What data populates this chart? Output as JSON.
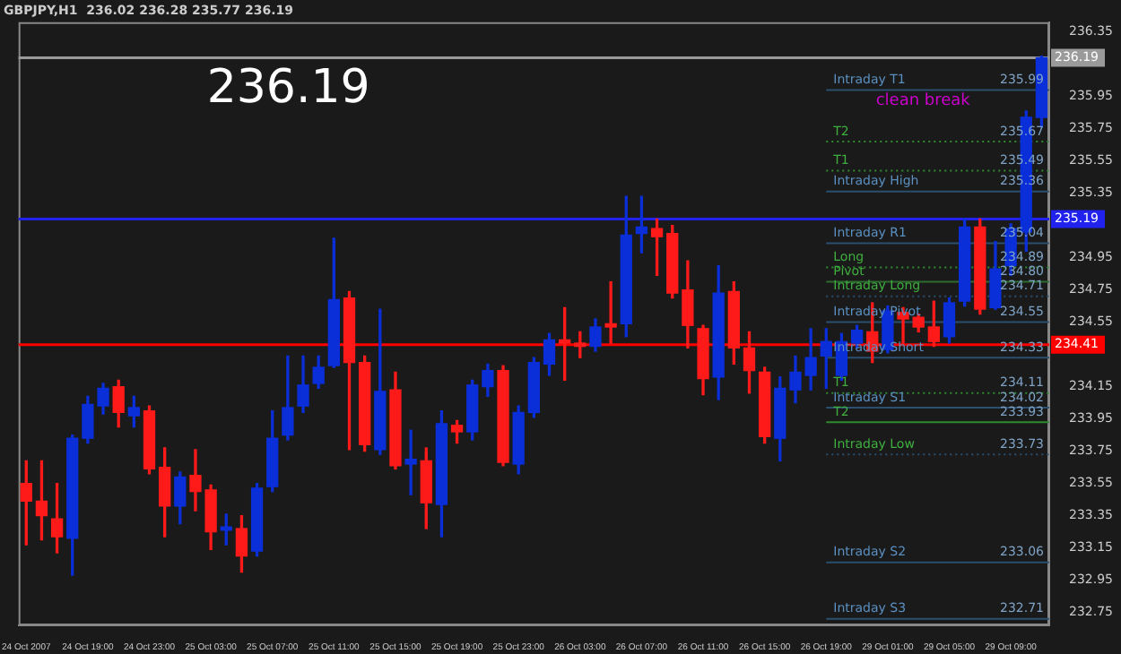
{
  "chart_data": {
    "type": "candlestick",
    "title": "GBPJPY,H1  236.02 236.28 235.77 236.19",
    "annotations": [
      "236.19",
      "clean break",
      {
        "text": "236.19",
        "y": 236.19
      },
      {
        "text": "235.19",
        "y": 235.19
      },
      {
        "text": "234.41",
        "y": 234.41
      },
      {
        "text": "235.99",
        "y": 235.99
      },
      {
        "text": "235.67",
        "y": 235.67
      },
      {
        "text": "235.49",
        "y": 235.49
      },
      {
        "text": "235.36",
        "y": 235.36
      },
      {
        "text": "235.04",
        "y": 235.04
      },
      {
        "text": "234.89",
        "y": 234.89
      },
      {
        "text": "234.80",
        "y": 234.8
      },
      {
        "text": "234.71",
        "y": 234.71
      },
      {
        "text": "234.55",
        "y": 234.55
      },
      {
        "text": "234.33",
        "y": 234.33
      },
      {
        "text": "234.11",
        "y": 234.11
      },
      {
        "text": "234.02",
        "y": 234.02
      },
      {
        "text": "233.93",
        "y": 233.93
      },
      {
        "text": "233.73",
        "y": 233.73
      },
      {
        "text": "233.06",
        "y": 233.06
      },
      {
        "text": "232.71",
        "y": 232.71
      }
    ],
    "categories": [
      "24 Oct 2007",
      null,
      null,
      null,
      "24 Oct 19:00",
      null,
      null,
      null,
      "24 Oct 23:00",
      null,
      null,
      null,
      "25 Oct 03:00",
      null,
      null,
      null,
      "25 Oct 07:00",
      null,
      null,
      null,
      "25 Oct 11:00",
      null,
      null,
      null,
      "25 Oct 15:00",
      null,
      null,
      null,
      "25 Oct 19:00",
      null,
      null,
      null,
      "25 Oct 23:00",
      null,
      null,
      null,
      "26 Oct 03:00",
      null,
      null,
      null,
      "26 Oct 07:00",
      null,
      null,
      null,
      "26 Oct 11:00",
      null,
      null,
      null,
      "26 Oct 15:00",
      null,
      null,
      null,
      "26 Oct 19:00",
      null,
      null,
      null,
      "29 Oct 01:00",
      null,
      null,
      null,
      "29 Oct 05:00",
      null,
      null,
      null,
      "29 Oct 09:00",
      null,
      null
    ],
    "ohlc": [
      [
        233.55,
        233.69,
        233.17,
        233.44
      ],
      [
        233.44,
        233.69,
        233.2,
        233.35
      ],
      [
        233.33,
        233.55,
        233.12,
        233.22
      ],
      [
        233.21,
        233.85,
        232.98,
        233.83
      ],
      [
        233.83,
        234.09,
        233.8,
        234.04
      ],
      [
        234.03,
        234.17,
        233.98,
        234.14
      ],
      [
        234.15,
        234.19,
        233.9,
        233.99
      ],
      [
        233.97,
        234.09,
        233.9,
        234.02
      ],
      [
        234.0,
        234.03,
        233.61,
        233.64
      ],
      [
        233.65,
        233.77,
        233.22,
        233.41
      ],
      [
        233.41,
        233.62,
        233.3,
        233.59
      ],
      [
        233.6,
        233.76,
        233.38,
        233.5
      ],
      [
        233.51,
        233.54,
        233.14,
        233.25
      ],
      [
        233.26,
        233.36,
        233.17,
        233.28
      ],
      [
        233.27,
        233.35,
        233.0,
        233.1
      ],
      [
        233.13,
        233.55,
        233.1,
        233.52
      ],
      [
        233.53,
        234.0,
        233.5,
        233.83
      ],
      [
        233.85,
        234.34,
        233.82,
        234.02
      ],
      [
        234.03,
        234.34,
        233.99,
        234.16
      ],
      [
        234.17,
        234.34,
        234.14,
        234.27
      ],
      [
        234.28,
        235.07,
        234.27,
        234.69
      ],
      [
        234.7,
        234.74,
        233.76,
        234.3
      ],
      [
        234.3,
        234.34,
        233.75,
        233.79
      ],
      [
        233.76,
        234.63,
        233.73,
        234.12
      ],
      [
        234.13,
        234.24,
        233.64,
        233.66
      ],
      [
        233.67,
        233.88,
        233.48,
        233.7
      ],
      [
        233.69,
        233.77,
        233.27,
        233.43
      ],
      [
        233.42,
        234.0,
        233.22,
        233.92
      ],
      [
        233.91,
        233.94,
        233.8,
        233.87
      ],
      [
        233.87,
        234.19,
        233.82,
        234.16
      ],
      [
        234.15,
        234.29,
        234.09,
        234.25
      ],
      [
        234.25,
        234.28,
        233.66,
        233.68
      ],
      [
        233.67,
        234.03,
        233.61,
        233.99
      ],
      [
        233.99,
        234.33,
        233.96,
        234.3
      ],
      [
        234.29,
        234.48,
        234.22,
        234.44
      ],
      [
        234.44,
        234.64,
        234.19,
        234.42
      ],
      [
        234.42,
        234.49,
        234.33,
        234.4
      ],
      [
        234.4,
        234.57,
        234.37,
        234.52
      ],
      [
        234.54,
        234.8,
        234.42,
        234.52
      ],
      [
        234.54,
        235.33,
        234.46,
        235.09
      ],
      [
        235.1,
        235.33,
        234.98,
        235.14
      ],
      [
        235.13,
        235.19,
        234.84,
        235.08
      ],
      [
        235.1,
        235.15,
        234.7,
        234.73
      ],
      [
        234.75,
        234.93,
        234.39,
        234.53
      ],
      [
        234.51,
        234.53,
        234.1,
        234.2
      ],
      [
        234.21,
        234.9,
        234.07,
        234.73
      ],
      [
        234.74,
        234.8,
        234.29,
        234.39
      ],
      [
        234.39,
        234.49,
        234.11,
        234.25
      ],
      [
        234.24,
        234.27,
        233.8,
        233.84
      ],
      [
        233.83,
        234.21,
        233.69,
        234.14
      ],
      [
        234.13,
        234.34,
        234.05,
        234.24
      ],
      [
        234.22,
        234.51,
        234.13,
        234.33
      ],
      [
        234.34,
        234.51,
        234.14,
        234.43
      ],
      [
        234.22,
        234.48,
        234.19,
        234.43
      ],
      [
        234.42,
        234.53,
        234.39,
        234.5
      ],
      [
        234.49,
        234.67,
        234.3,
        234.37
      ],
      [
        234.38,
        234.65,
        234.36,
        234.62
      ],
      [
        234.61,
        234.64,
        234.42,
        234.57
      ],
      [
        234.58,
        234.6,
        234.49,
        234.52
      ],
      [
        234.52,
        234.68,
        234.4,
        234.43
      ],
      [
        234.46,
        234.7,
        234.42,
        234.67
      ],
      [
        234.68,
        235.19,
        234.65,
        235.14
      ],
      [
        235.14,
        235.19,
        234.6,
        234.63
      ],
      [
        234.64,
        235.05,
        234.63,
        234.88
      ],
      [
        234.9,
        235.16,
        234.84,
        235.13
      ],
      [
        235.11,
        235.86,
        234.99,
        235.82
      ],
      [
        235.82,
        236.2,
        235.76,
        236.19
      ]
    ],
    "colors": [
      "#ff1a1a",
      "#ff1a1a",
      "#ff1a1a",
      "#0a2ed8",
      "#0a2ed8",
      "#0a2ed8",
      "#ff1a1a",
      "#0a2ed8",
      "#ff1a1a",
      "#ff1a1a",
      "#0a2ed8",
      "#ff1a1a",
      "#ff1a1a",
      "#0a2ed8",
      "#ff1a1a",
      "#0a2ed8",
      "#0a2ed8",
      "#0a2ed8",
      "#0a2ed8",
      "#0a2ed8",
      "#0a2ed8",
      "#ff1a1a",
      "#ff1a1a",
      "#0a2ed8",
      "#ff1a1a",
      "#0a2ed8",
      "#ff1a1a",
      "#0a2ed8",
      "#ff1a1a",
      "#0a2ed8",
      "#0a2ed8",
      "#ff1a1a",
      "#0a2ed8",
      "#0a2ed8",
      "#0a2ed8",
      "#ff1a1a",
      "#ff1a1a",
      "#0a2ed8",
      "#ff1a1a",
      "#0a2ed8",
      "#0a2ed8",
      "#ff1a1a",
      "#ff1a1a",
      "#ff1a1a",
      "#ff1a1a",
      "#0a2ed8",
      "#ff1a1a",
      "#ff1a1a",
      "#ff1a1a",
      "#0a2ed8",
      "#0a2ed8",
      "#0a2ed8",
      "#0a2ed8",
      "#0a2ed8",
      "#0a2ed8",
      "#ff1a1a",
      "#0a2ed8",
      "#ff1a1a",
      "#ff1a1a",
      "#ff1a1a",
      "#0a2ed8",
      "#0a2ed8",
      "#ff1a1a",
      "#0a2ed8",
      "#0a2ed8",
      "#0a2ed8",
      "#0a2ed8"
    ],
    "ylim": [
      232.67,
      236.41
    ],
    "yticks": [
      232.75,
      232.95,
      233.15,
      233.35,
      233.55,
      233.75,
      233.95,
      234.15,
      234.55,
      234.75,
      234.95,
      235.35,
      235.55,
      235.75,
      235.95,
      236.35
    ],
    "grid": false,
    "legend": false,
    "ref_lines": [
      {
        "axis": "y",
        "value": 236.19,
        "color": "#9a9a9a",
        "line_style": "solid"
      },
      {
        "axis": "y",
        "value": 235.19,
        "color": "#2222ee",
        "line_style": "solid"
      },
      {
        "axis": "y",
        "value": 234.41,
        "color": "#ff0000",
        "line_style": "solid"
      },
      {
        "axis": "y",
        "value": 235.99,
        "label": "Intraday T1",
        "color": "#2b4f6e",
        "line_style": "solid"
      },
      {
        "axis": "y",
        "value": 235.67,
        "label": "T2",
        "color": "#2e8b2e",
        "line_style": "dotted"
      },
      {
        "axis": "y",
        "value": 235.49,
        "label": "T1",
        "color": "#2e8b2e",
        "line_style": "dotted"
      },
      {
        "axis": "y",
        "value": 235.36,
        "label": "Intraday High",
        "color": "#2b4f6e",
        "line_style": "solid"
      },
      {
        "axis": "y",
        "value": 235.04,
        "label": "Intraday R1",
        "color": "#2b4f6e",
        "line_style": "solid"
      },
      {
        "axis": "y",
        "value": 234.89,
        "label": "Long",
        "color": "#2e8b2e",
        "line_style": "dotted"
      },
      {
        "axis": "y",
        "value": 234.8,
        "label": "Pivot",
        "color": "#2e6b2e",
        "line_style": "solid"
      },
      {
        "axis": "y",
        "value": 234.71,
        "label": "Intraday Long",
        "color": "#2b4f6e",
        "line_style": "dotted"
      },
      {
        "axis": "y",
        "value": 234.55,
        "label": "Intraday Pivot",
        "color": "#2b4f6e",
        "line_style": "solid"
      },
      {
        "axis": "y",
        "value": 234.33,
        "label": "Intraday Short",
        "color": "#2b4f6e",
        "line_style": "solid"
      },
      {
        "axis": "y",
        "value": 234.11,
        "label": "T1",
        "color": "#2e8b2e",
        "line_style": "dotted"
      },
      {
        "axis": "y",
        "value": 234.02,
        "label": "Intraday S1",
        "color": "#2b4f6e",
        "line_style": "solid"
      },
      {
        "axis": "y",
        "value": 233.93,
        "label": "T2",
        "color": "#2e8b2e",
        "line_style": "solid"
      },
      {
        "axis": "y",
        "value": 233.73,
        "label": "Intraday Low",
        "color": "#2b4f6e",
        "line_style": "dotted"
      },
      {
        "axis": "y",
        "value": 233.06,
        "label": "Intraday S2",
        "color": "#2b4f6e",
        "line_style": "solid"
      },
      {
        "axis": "y",
        "value": 232.71,
        "label": "Intraday S3",
        "color": "#2b4f6e",
        "line_style": "solid"
      }
    ]
  }
}
